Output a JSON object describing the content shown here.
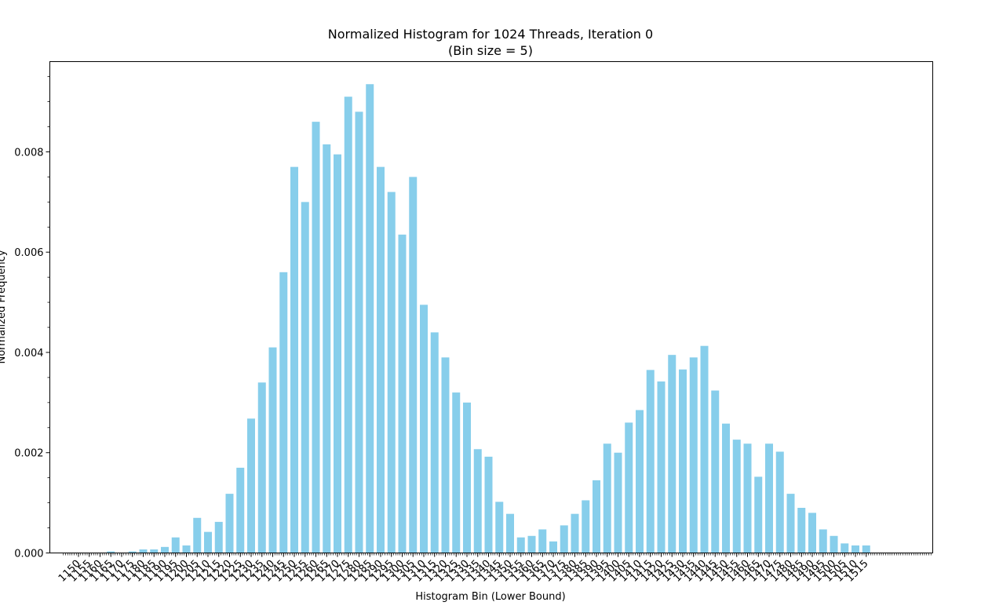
{
  "chart_data": {
    "type": "bar",
    "title": "Normalized Histogram for 1024 Threads, Iteration 0",
    "subtitle": "(Bin size = 5)",
    "xlabel": "Histogram Bin (Lower Bound)",
    "ylabel": "Normalized Frequency",
    "ylim": [
      0,
      0.0098
    ],
    "yticks": [
      "0.000",
      "0.002",
      "0.004",
      "0.006",
      "0.008"
    ],
    "bar_color": "#87ceeb",
    "grid": false,
    "legend": "none",
    "categories": [
      "1150",
      "1155",
      "1160",
      "1165",
      "1170",
      "1175",
      "1180",
      "1185",
      "1190",
      "1195",
      "1200",
      "1205",
      "1210",
      "1215",
      "1220",
      "1225",
      "1230",
      "1235",
      "1240",
      "1245",
      "1250",
      "1255",
      "1260",
      "1265",
      "1270",
      "1275",
      "1280",
      "1285",
      "1290",
      "1295",
      "1300",
      "1305",
      "1310",
      "1315",
      "1320",
      "1325",
      "1330",
      "1335",
      "1340",
      "1345",
      "1350",
      "1355",
      "1360",
      "1365",
      "1370",
      "1375",
      "1380",
      "1385",
      "1390",
      "1395",
      "1400",
      "1405",
      "1410",
      "1415",
      "1420",
      "1425",
      "1430",
      "1435",
      "1440",
      "1445",
      "1450",
      "1455",
      "1460",
      "1465",
      "1470",
      "1475",
      "1480",
      "1485",
      "1490",
      "1495",
      "1500",
      "1505",
      "1510",
      "1515"
    ],
    "values": [
      0,
      0,
      0,
      3e-05,
      0,
      3e-05,
      7e-05,
      7e-05,
      0.00012,
      0.00031,
      0.00015,
      0.0007,
      0.00042,
      0.00062,
      0.00118,
      0.0017,
      0.00268,
      0.0034,
      0.0041,
      0.0056,
      0.0077,
      0.007,
      0.0086,
      0.00815,
      0.00795,
      0.0091,
      0.0088,
      0.00935,
      0.0077,
      0.0072,
      0.00635,
      0.0075,
      0.00495,
      0.0044,
      0.0039,
      0.0032,
      0.003,
      0.00207,
      0.00192,
      0.00102,
      0.00078,
      0.00031,
      0.00034,
      0.00047,
      0.00023,
      0.00055,
      0.00078,
      0.00105,
      0.00145,
      0.00218,
      0.002,
      0.0026,
      0.00285,
      0.00365,
      0.00342,
      0.00395,
      0.00366,
      0.0039,
      0.00413,
      0.00324,
      0.00258,
      0.00226,
      0.00218,
      0.00152,
      0.00218,
      0.00202,
      0.00118,
      0.0009,
      0.0008,
      0.00047,
      0.00034,
      0.00019,
      0.00015,
      0.00015
    ]
  }
}
